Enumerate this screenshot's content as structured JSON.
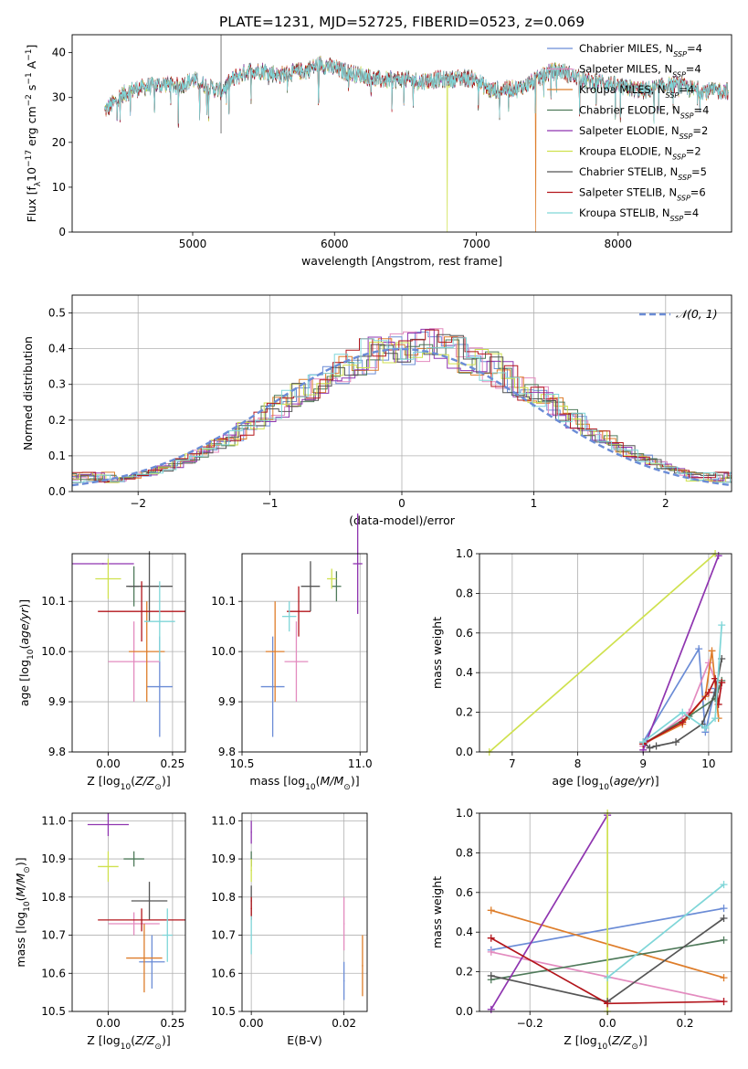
{
  "figure": {
    "title": "PLATE=1231, MJD=52725, FIBERID=0523, z=0.069"
  },
  "models": [
    {
      "label_html": "Chabrier MILES, N<tspan baseline-shift=\"sub\" font-size=\"8\">SSP</tspan>=4",
      "label": "Chabrier MILES, NSSP=4",
      "color": "#6b8cd6"
    },
    {
      "label": "Salpeter MILES, NSSP=4",
      "color": "#e38bbf"
    },
    {
      "label": "Kroupa MILES, NSSP=4",
      "color": "#de7d2a"
    },
    {
      "label": "Chabrier ELODIE, NSSP=4",
      "color": "#4f7a5a"
    },
    {
      "label": "Salpeter ELODIE, NSSP=2",
      "color": "#8f35b0"
    },
    {
      "label": "Kroupa ELODIE, NSSP=2",
      "color": "#cfe14e"
    },
    {
      "label": "Chabrier STELIB, NSSP=5",
      "color": "#555555"
    },
    {
      "label": "Salpeter STELIB, NSSP=6",
      "color": "#b3161c"
    },
    {
      "label": "Kroupa STELIB, NSSP=4",
      "color": "#7fd6d8"
    }
  ],
  "chart_data": [
    {
      "id": "spectrum",
      "type": "line",
      "title": "PLATE=1231, MJD=52725, FIBERID=0523, z=0.069",
      "xlabel": "wavelength [Angstrom, rest frame]",
      "ylabel": "Flux [f_λ 10^-17 erg cm^-2 s^-1 A^-1]",
      "xlim": [
        4150,
        8800
      ],
      "ylim": [
        0,
        44
      ],
      "xticks": [
        5000,
        6000,
        7000,
        8000
      ],
      "yticks": [
        0,
        10,
        20,
        30,
        40
      ],
      "legend": "upper-right",
      "envelope": {
        "x": [
          4380,
          4500,
          4600,
          4700,
          4800,
          4900,
          5000,
          5100,
          5200,
          5300,
          5400,
          5500,
          5600,
          5700,
          5800,
          5900,
          6000,
          6100,
          6200,
          6300,
          6400,
          6500,
          6600,
          6700,
          6800,
          6900,
          7000,
          7100,
          7200,
          7300,
          7400,
          7500,
          7600,
          7700,
          7800,
          7900,
          8000,
          8100,
          8200,
          8300,
          8400,
          8500,
          8600,
          8780
        ],
        "y": [
          28.5,
          32,
          33.5,
          34,
          34.5,
          34,
          35.5,
          34,
          33,
          36,
          37.5,
          37.5,
          36.5,
          37,
          37.5,
          39,
          38,
          37,
          36.5,
          35.5,
          35.5,
          35.5,
          35,
          35.5,
          35.5,
          36,
          35.5,
          33,
          33.5,
          33.5,
          35,
          37,
          37.5,
          36,
          35,
          35,
          34,
          33.5,
          33,
          34,
          34.5,
          33.5,
          33,
          33
        ]
      },
      "drops": [
        {
          "x": 6795,
          "to": 0,
          "series": "Kroupa ELODIE, NSSP=2"
        },
        {
          "x": 7420,
          "to": 0,
          "series": "Kroupa MILES, NSSP=4"
        }
      ]
    },
    {
      "id": "residuals",
      "type": "step",
      "xlabel": "(data-model)/error",
      "ylabel": "Normed distribution",
      "xlim": [
        -2.5,
        2.5
      ],
      "ylim": [
        0,
        0.55
      ],
      "xticks": [
        -2,
        -1,
        0,
        1,
        2
      ],
      "yticks": [
        0,
        0.1,
        0.2,
        0.3,
        0.4,
        0.5
      ],
      "reference_curve": "N(0,1)",
      "legend": "upper-right",
      "bin_width": 0.1
    },
    {
      "id": "age-vs-Z",
      "type": "errorbar",
      "xlabel": "Z [log10(Z/Z⊙)]",
      "ylabel": "age [log10(age/yr)]",
      "xlim": [
        -0.14,
        0.3
      ],
      "ylim": [
        9.8,
        10.195
      ],
      "xticks": [
        0.0,
        0.25
      ],
      "yticks": [
        9.8,
        9.9,
        10.0,
        10.1
      ],
      "points": [
        {
          "x": 0.2,
          "y": 9.93,
          "xerr": 0.05,
          "yerr": 0.1
        },
        {
          "x": 0.1,
          "y": 9.98,
          "xerr": 0.1,
          "yerr": 0.08
        },
        {
          "x": 0.15,
          "y": 10.0,
          "xerr": 0.07,
          "yerr": 0.1
        },
        {
          "x": 0.1,
          "y": 10.13,
          "xerr": 0.02,
          "yerr": 0.04
        },
        {
          "x": -0.02,
          "y": 10.175,
          "xerr": 0.12,
          "yerr": 0.0
        },
        {
          "x": 0.0,
          "y": 10.145,
          "xerr": 0.05,
          "yerr": 0.04
        },
        {
          "x": 0.16,
          "y": 10.13,
          "xerr": 0.09,
          "yerr": 0.07
        },
        {
          "x": 0.13,
          "y": 10.08,
          "xerr": 0.17,
          "yerr": 0.06
        },
        {
          "x": 0.2,
          "y": 10.06,
          "xerr": 0.06,
          "yerr": 0.08
        }
      ]
    },
    {
      "id": "age-vs-mass",
      "type": "errorbar",
      "xlabel": "mass [log10(M/M⊙)]",
      "ylabel": "",
      "xlim": [
        10.5,
        11.03
      ],
      "ylim": [
        9.8,
        10.195
      ],
      "xticks": [
        10.5,
        11.0
      ],
      "yticks": [
        9.8,
        9.9,
        10.0,
        10.1
      ],
      "points": [
        {
          "x": 10.63,
          "y": 9.93,
          "xerr": 0.05,
          "yerr": 0.1
        },
        {
          "x": 10.73,
          "y": 9.98,
          "xerr": 0.05,
          "yerr": 0.08
        },
        {
          "x": 10.64,
          "y": 10.0,
          "xerr": 0.04,
          "yerr": 0.1
        },
        {
          "x": 10.9,
          "y": 10.13,
          "xerr": 0.02,
          "yerr": 0.03
        },
        {
          "x": 10.99,
          "y": 10.175,
          "xerr": 0.02,
          "yerr": 0.1
        },
        {
          "x": 10.88,
          "y": 10.145,
          "xerr": 0.02,
          "yerr": 0.02
        },
        {
          "x": 10.79,
          "y": 10.13,
          "xerr": 0.04,
          "yerr": 0.05
        },
        {
          "x": 10.74,
          "y": 10.08,
          "xerr": 0.05,
          "yerr": 0.05
        },
        {
          "x": 10.7,
          "y": 10.07,
          "xerr": 0.03,
          "yerr": 0.03
        }
      ]
    },
    {
      "id": "massweight-vs-age",
      "type": "line",
      "xlabel": "age [log10(age/yr)]",
      "ylabel": "mass weight",
      "xlim": [
        6.5,
        10.35
      ],
      "ylim": [
        0,
        1.0
      ],
      "xticks": [
        7,
        8,
        9,
        10
      ],
      "yticks": [
        0.0,
        0.2,
        0.4,
        0.6,
        0.8,
        1.0
      ],
      "series": [
        {
          "x": [
            9.0,
            9.85,
            9.95,
            10.1
          ],
          "y": [
            0.05,
            0.52,
            0.1,
            0.32
          ]
        },
        {
          "x": [
            9.0,
            9.7,
            10.0,
            10.15
          ],
          "y": [
            0.03,
            0.2,
            0.45,
            0.32
          ]
        },
        {
          "x": [
            9.0,
            9.6,
            9.95,
            10.05,
            10.15
          ],
          "y": [
            0.04,
            0.14,
            0.28,
            0.51,
            0.17
          ]
        },
        {
          "x": [
            9.0,
            9.7,
            10.1,
            10.2
          ],
          "y": [
            0.04,
            0.18,
            0.27,
            0.36
          ]
        },
        {
          "x": [
            9.0,
            10.15
          ],
          "y": [
            0.01,
            0.99
          ]
        },
        {
          "x": [
            6.65,
            10.1
          ],
          "y": [
            0.0,
            1.0
          ]
        },
        {
          "x": [
            9.0,
            9.1,
            9.2,
            9.5,
            9.9,
            10.1,
            10.2
          ],
          "y": [
            0.05,
            0.02,
            0.03,
            0.05,
            0.14,
            0.3,
            0.47
          ]
        },
        {
          "x": [
            9.0,
            9.6,
            10.0,
            10.1,
            10.15,
            10.2
          ],
          "y": [
            0.04,
            0.15,
            0.3,
            0.37,
            0.24,
            0.35
          ]
        },
        {
          "x": [
            9.0,
            9.6,
            9.95,
            10.1,
            10.2
          ],
          "y": [
            0.05,
            0.2,
            0.12,
            0.17,
            0.64
          ]
        }
      ]
    },
    {
      "id": "mass-vs-Z",
      "type": "errorbar",
      "xlabel": "Z [log10(Z/Z⊙)]",
      "ylabel": "mass [log10(M/M⊙)]",
      "xlim": [
        -0.14,
        0.3
      ],
      "ylim": [
        10.5,
        11.02
      ],
      "xticks": [
        0.0,
        0.25
      ],
      "yticks": [
        10.5,
        10.6,
        10.7,
        10.8,
        10.9,
        11.0
      ],
      "points": [
        {
          "x": 0.17,
          "y": 10.63,
          "xerr": 0.05,
          "yerr": 0.07
        },
        {
          "x": 0.1,
          "y": 10.73,
          "xerr": 0.1,
          "yerr": 0.03
        },
        {
          "x": 0.14,
          "y": 10.64,
          "xerr": 0.07,
          "yerr": 0.09
        },
        {
          "x": 0.1,
          "y": 10.9,
          "xerr": 0.04,
          "yerr": 0.02
        },
        {
          "x": 0.0,
          "y": 10.99,
          "xerr": 0.08,
          "yerr": 0.03
        },
        {
          "x": 0.0,
          "y": 10.88,
          "xerr": 0.04,
          "yerr": 0.04
        },
        {
          "x": 0.16,
          "y": 10.79,
          "xerr": 0.07,
          "yerr": 0.05
        },
        {
          "x": 0.13,
          "y": 10.74,
          "xerr": 0.17,
          "yerr": 0.03
        },
        {
          "x": 0.23,
          "y": 10.7,
          "xerr": 0.02,
          "yerr": 0.07
        }
      ]
    },
    {
      "id": "mass-vs-ebv",
      "type": "errorbar",
      "xlabel": "E(B-V)",
      "ylabel": "",
      "xlim": [
        -0.002,
        0.025
      ],
      "ylim": [
        10.5,
        11.02
      ],
      "xticks": [
        0.0,
        0.02
      ],
      "yticks": [
        10.5,
        10.6,
        10.7,
        10.8,
        10.9,
        11.0
      ],
      "points": [
        {
          "x": 0.02,
          "y": 10.58,
          "xerr": 0,
          "yerr": 0.05
        },
        {
          "x": 0.02,
          "y": 10.73,
          "xerr": 0,
          "yerr": 0.07
        },
        {
          "x": 0.024,
          "y": 10.62,
          "xerr": 0,
          "yerr": 0.08
        },
        {
          "x": 0.0,
          "y": 10.9,
          "xerr": 0,
          "yerr": 0.02
        },
        {
          "x": 0.0,
          "y": 10.97,
          "xerr": 0,
          "yerr": 0.03
        },
        {
          "x": 0.0,
          "y": 10.87,
          "xerr": 0,
          "yerr": 0.03
        },
        {
          "x": 0.0,
          "y": 10.79,
          "xerr": 0,
          "yerr": 0.04
        },
        {
          "x": 0.0,
          "y": 10.77,
          "xerr": 0,
          "yerr": 0.03
        },
        {
          "x": 0.0,
          "y": 10.7,
          "xerr": 0,
          "yerr": 0.05
        }
      ]
    },
    {
      "id": "massweight-vs-Z",
      "type": "line",
      "xlabel": "Z [log10(Z/Z⊙)]",
      "ylabel": "mass weight",
      "xlim": [
        -0.33,
        0.32
      ],
      "ylim": [
        0,
        1.0
      ],
      "xticks": [
        -0.2,
        0.0,
        0.2
      ],
      "yticks": [
        0.0,
        0.2,
        0.4,
        0.6,
        0.8,
        1.0
      ],
      "series": [
        {
          "x": [
            -0.3,
            0.3
          ],
          "y": [
            0.31,
            0.52
          ]
        },
        {
          "x": [
            -0.3,
            0.3
          ],
          "y": [
            0.3,
            0.05
          ]
        },
        {
          "x": [
            -0.3,
            0.3
          ],
          "y": [
            0.51,
            0.17
          ]
        },
        {
          "x": [
            -0.3,
            0.3
          ],
          "y": [
            0.16,
            0.36
          ]
        },
        {
          "x": [
            -0.3,
            0.0
          ],
          "y": [
            0.01,
            0.99
          ]
        },
        {
          "x": [
            0.0,
            0.0
          ],
          "y": [
            0.0,
            1.0
          ]
        },
        {
          "x": [
            -0.3,
            0.0,
            0.3
          ],
          "y": [
            0.18,
            0.05,
            0.47
          ]
        },
        {
          "x": [
            -0.3,
            0.0,
            0.3
          ],
          "y": [
            0.37,
            0.04,
            0.05
          ]
        },
        {
          "x": [
            0.0,
            0.3
          ],
          "y": [
            0.17,
            0.64
          ]
        }
      ]
    }
  ],
  "legend_residuals_label": "𝒩(0, 1)"
}
